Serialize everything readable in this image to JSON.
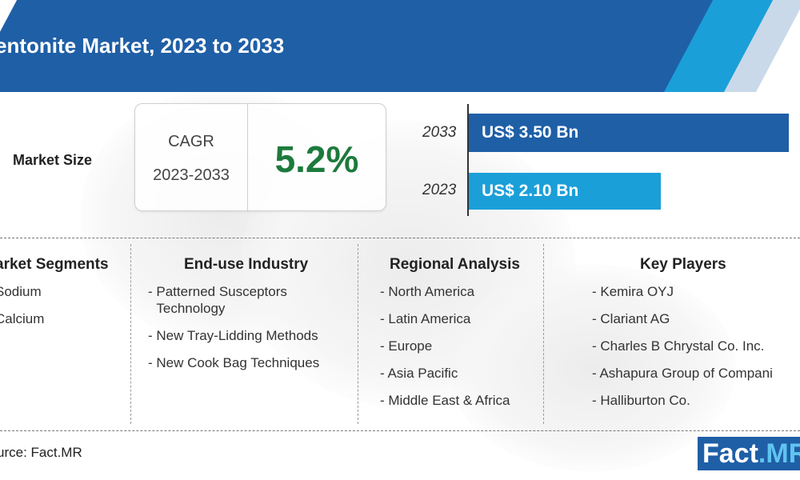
{
  "header": {
    "title": "entonite Market, 2023 to 2033"
  },
  "market_size": {
    "label": "Market Size",
    "cagr_label": "CAGR",
    "cagr_period": "2023-2033",
    "cagr_value": "5.2%"
  },
  "chart_data": {
    "type": "bar",
    "categories": [
      "2033",
      "2023"
    ],
    "values": [
      3.5,
      2.1
    ],
    "value_labels": [
      "US$ 3.50 Bn",
      "US$ 2.10 Bn"
    ],
    "colors": [
      "#1f5fa6",
      "#1b9fd8"
    ],
    "xlim": [
      0,
      3.5
    ],
    "title": "",
    "xlabel": "",
    "ylabel": ""
  },
  "segments": [
    {
      "title": "arket Segments",
      "items": [
        "Sodium",
        "Calcium"
      ]
    },
    {
      "title": "End-use Industry",
      "items": [
        "Patterned Susceptors Technology",
        "New Tray-Lidding Methods",
        "New Cook Bag Techniques"
      ]
    },
    {
      "title": "Regional Analysis",
      "items": [
        "North America",
        "Latin America",
        "Europe",
        "Asia Pacific",
        "Middle East & Africa"
      ]
    },
    {
      "title": "Key Players",
      "items": [
        "Kemira OYJ",
        "Clariant AG",
        "Charles B Chrystal Co. Inc.",
        "Ashapura Group of Compani",
        "Halliburton Co."
      ]
    }
  ],
  "footer": {
    "source": "urce: Fact.MR",
    "logo_part1": "Fact",
    "logo_part2": ".MR"
  },
  "colors": {
    "dark_blue": "#1f5fa6",
    "light_blue": "#1b9fd8",
    "cagr_green": "#1d7a3c"
  }
}
